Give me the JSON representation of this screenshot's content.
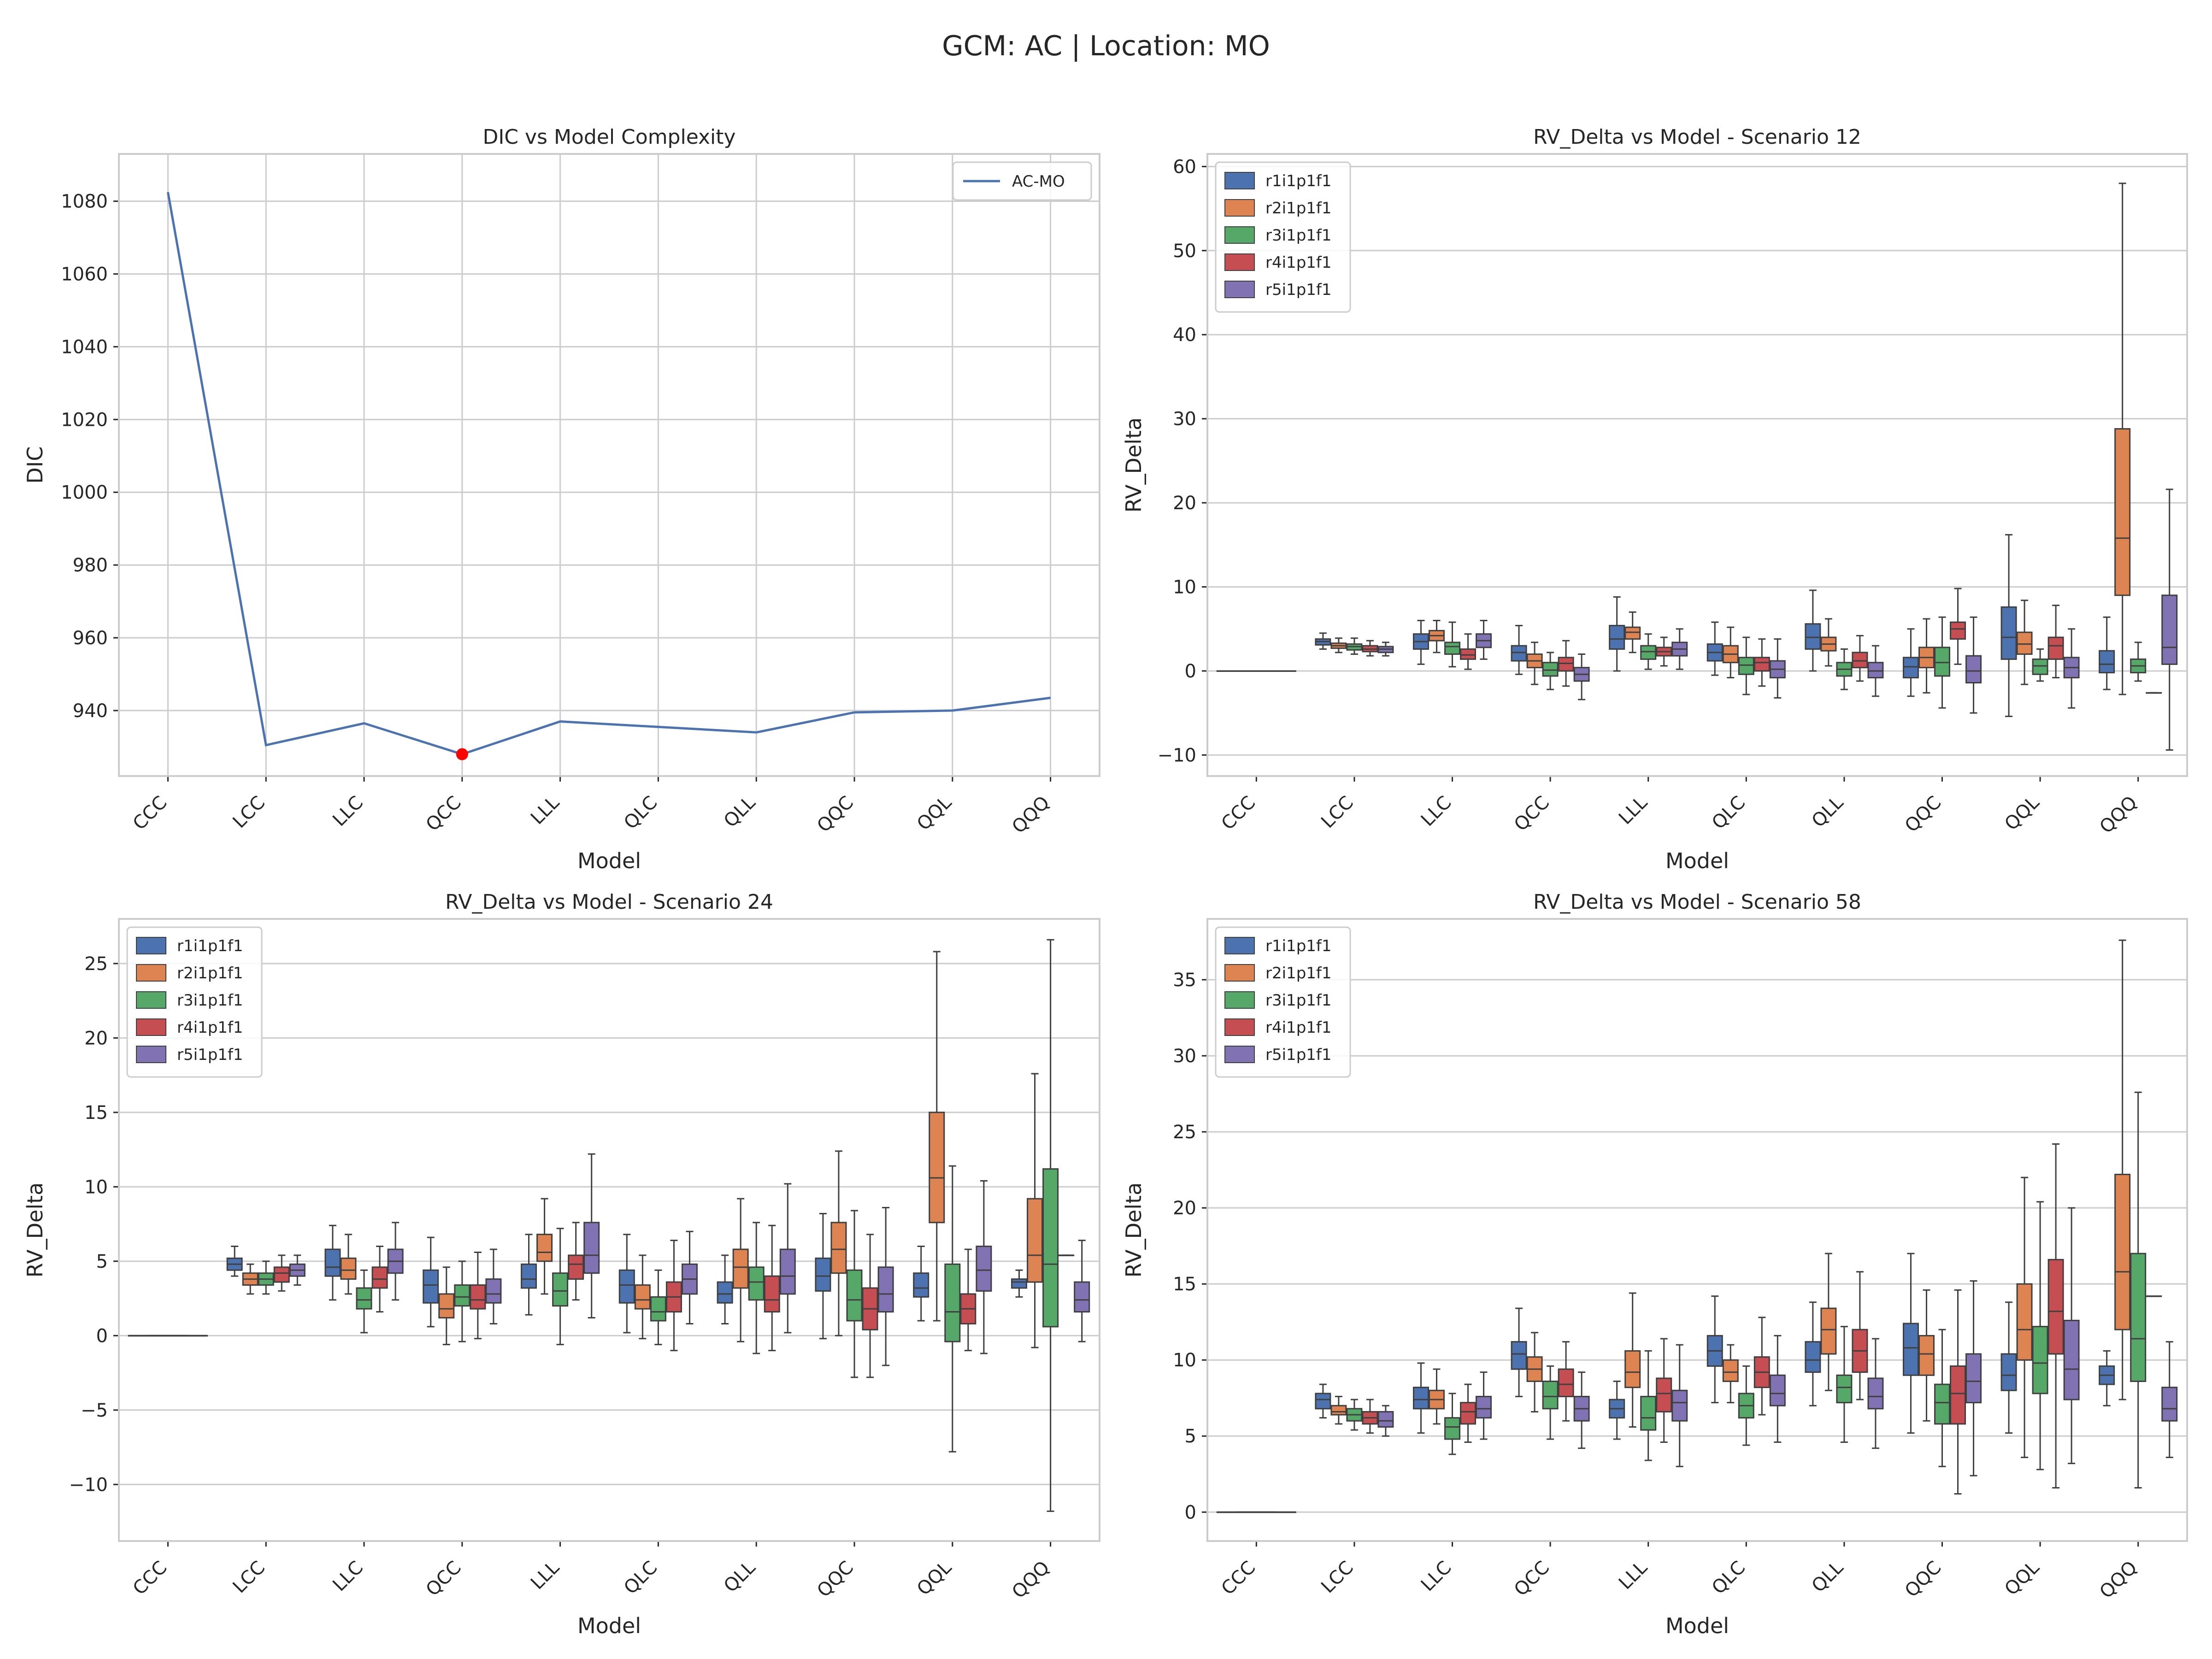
{
  "suptitle": "GCM: AC | Location: MO",
  "palette": [
    "#4c72b0",
    "#dd8452",
    "#55a868",
    "#c44e52",
    "#8172b3"
  ],
  "charts": [
    {
      "type": "line",
      "title": "DIC vs Model Complexity",
      "xlabel": "Model",
      "ylabel": "DIC",
      "categories": [
        "CCC",
        "LCC",
        "LLC",
        "QCC",
        "LLL",
        "QLC",
        "QLL",
        "QQC",
        "QQL",
        "QQQ"
      ],
      "series": [
        {
          "name": "AC-MO",
          "color": "#4c72b0",
          "values": [
            1082.5,
            930.5,
            936.5,
            928.0,
            937.0,
            935.5,
            934.0,
            939.5,
            940.0,
            943.5
          ]
        }
      ],
      "highlight": {
        "category": "QCC",
        "value": 928.0,
        "color": "#ff0000"
      },
      "ylim": [
        922,
        1093
      ],
      "yticks": [
        940,
        960,
        980,
        1000,
        1020,
        1040,
        1060,
        1080
      ],
      "legend": "top-right",
      "grid": true
    },
    {
      "type": "box",
      "title": "RV_Delta vs Model - Scenario 12",
      "xlabel": "Model",
      "ylabel": "RV_Delta",
      "categories": [
        "CCC",
        "LCC",
        "LLC",
        "QCC",
        "LLL",
        "QLC",
        "QLL",
        "QQC",
        "QQL",
        "QQQ"
      ],
      "series_names": [
        "r1i1p1f1",
        "r2i1p1f1",
        "r3i1p1f1",
        "r4i1p1f1",
        "r5i1p1f1"
      ],
      "legend": "top-left",
      "ylim": [
        -12.5,
        61.5
      ],
      "yticks": [
        -10,
        0,
        10,
        20,
        30,
        40,
        50,
        60
      ],
      "grid": true,
      "boxes": [
        [
          [
            0,
            0,
            0,
            0,
            0
          ]
        ],
        [
          [
            2.6,
            3.1,
            3.5,
            3.8,
            4.5
          ],
          [
            2.2,
            2.7,
            3.0,
            3.3,
            3.9
          ],
          [
            2.0,
            2.5,
            2.9,
            3.2,
            3.9
          ],
          [
            1.8,
            2.3,
            2.6,
            3.0,
            3.6
          ],
          [
            1.8,
            2.2,
            2.6,
            2.9,
            3.4
          ]
        ],
        [
          [
            0.8,
            2.6,
            3.5,
            4.4,
            6.0
          ],
          [
            2.2,
            3.6,
            4.2,
            4.8,
            6.0
          ],
          [
            0.5,
            2.0,
            2.9,
            3.4,
            5.8
          ],
          [
            0.2,
            1.4,
            1.9,
            2.6,
            4.4
          ],
          [
            1.4,
            2.8,
            3.6,
            4.4,
            6.0
          ]
        ],
        [
          [
            -0.4,
            1.2,
            2.2,
            3.0,
            5.4
          ],
          [
            -1.6,
            0.4,
            1.2,
            2.0,
            3.4
          ],
          [
            -2.2,
            -0.6,
            0.1,
            1.0,
            2.2
          ],
          [
            -1.8,
            0.0,
            0.9,
            1.6,
            3.6
          ],
          [
            -3.4,
            -1.2,
            -0.4,
            0.4,
            2.0
          ]
        ],
        [
          [
            0.0,
            2.6,
            3.8,
            5.4,
            8.8
          ],
          [
            2.2,
            3.8,
            4.6,
            5.2,
            7.0
          ],
          [
            0.2,
            1.4,
            2.3,
            3.0,
            4.4
          ],
          [
            0.6,
            1.8,
            2.3,
            2.8,
            4.0
          ],
          [
            0.2,
            1.8,
            2.6,
            3.4,
            5.0
          ]
        ],
        [
          [
            -0.5,
            1.2,
            2.2,
            3.2,
            5.8
          ],
          [
            -0.8,
            1.0,
            2.0,
            3.0,
            5.2
          ],
          [
            -2.8,
            -0.4,
            0.7,
            1.6,
            4.0
          ],
          [
            -1.8,
            0.0,
            1.0,
            1.6,
            3.8
          ],
          [
            -3.2,
            -0.8,
            0.2,
            1.2,
            3.8
          ]
        ],
        [
          [
            0.0,
            2.6,
            4.0,
            5.6,
            9.6
          ],
          [
            0.6,
            2.4,
            3.2,
            4.0,
            6.2
          ],
          [
            -2.2,
            -0.6,
            0.2,
            1.0,
            2.6
          ],
          [
            -1.2,
            0.4,
            1.2,
            2.2,
            4.2
          ],
          [
            -3.0,
            -0.8,
            0.0,
            1.0,
            3.0
          ]
        ],
        [
          [
            -3.0,
            -0.8,
            0.5,
            1.6,
            5.0
          ],
          [
            -2.6,
            0.4,
            1.6,
            2.8,
            6.2
          ],
          [
            -4.4,
            -0.6,
            1.0,
            2.8,
            6.4
          ],
          [
            0.8,
            3.8,
            5.0,
            5.8,
            9.8
          ],
          [
            -5.0,
            -1.4,
            0.0,
            1.8,
            6.4
          ]
        ],
        [
          [
            -5.4,
            1.4,
            4.0,
            7.6,
            16.2
          ],
          [
            -1.6,
            2.0,
            3.2,
            4.6,
            8.4
          ],
          [
            -1.2,
            -0.4,
            0.6,
            1.4,
            2.6
          ],
          [
            -0.8,
            1.4,
            3.0,
            4.0,
            7.8
          ],
          [
            -4.4,
            -0.8,
            0.4,
            1.6,
            5.0
          ]
        ],
        [
          [
            -2.2,
            -0.2,
            0.8,
            2.4,
            6.4
          ],
          [
            -2.8,
            9.0,
            15.8,
            28.8,
            58.0
          ],
          [
            -1.2,
            -0.2,
            0.6,
            1.4,
            3.4
          ],
          [
            -2.6,
            -2.6,
            -2.6,
            -2.6,
            -2.6
          ],
          [
            -9.4,
            0.8,
            2.8,
            9.0,
            21.6
          ]
        ]
      ]
    },
    {
      "type": "box",
      "title": "RV_Delta vs Model - Scenario 24",
      "xlabel": "Model",
      "ylabel": "RV_Delta",
      "categories": [
        "CCC",
        "LCC",
        "LLC",
        "QCC",
        "LLL",
        "QLC",
        "QLL",
        "QQC",
        "QQL",
        "QQQ"
      ],
      "series_names": [
        "r1i1p1f1",
        "r2i1p1f1",
        "r3i1p1f1",
        "r4i1p1f1",
        "r5i1p1f1"
      ],
      "legend": "top-left",
      "ylim": [
        -13.8,
        28.0
      ],
      "yticks": [
        -10,
        -5,
        0,
        5,
        10,
        15,
        20,
        25
      ],
      "grid": true,
      "boxes": [
        [
          [
            0,
            0,
            0,
            0,
            0
          ]
        ],
        [
          [
            4.0,
            4.4,
            4.8,
            5.2,
            6.0
          ],
          [
            2.8,
            3.4,
            3.8,
            4.2,
            4.8
          ],
          [
            2.8,
            3.4,
            3.8,
            4.2,
            5.0
          ],
          [
            3.0,
            3.6,
            4.2,
            4.6,
            5.4
          ],
          [
            3.4,
            4.0,
            4.4,
            4.8,
            5.4
          ]
        ],
        [
          [
            2.4,
            4.0,
            4.6,
            5.8,
            7.4
          ],
          [
            2.8,
            3.8,
            4.4,
            5.2,
            6.8
          ],
          [
            0.2,
            1.8,
            2.4,
            3.2,
            4.4
          ],
          [
            1.6,
            3.2,
            3.8,
            4.6,
            6.0
          ],
          [
            2.4,
            4.2,
            5.0,
            5.8,
            7.6
          ]
        ],
        [
          [
            0.6,
            2.2,
            3.4,
            4.4,
            6.6
          ],
          [
            -0.6,
            1.2,
            1.8,
            2.8,
            4.6
          ],
          [
            -0.4,
            2.0,
            2.6,
            3.4,
            5.0
          ],
          [
            -0.2,
            1.8,
            2.4,
            3.4,
            5.6
          ],
          [
            0.8,
            2.2,
            2.8,
            3.8,
            5.8
          ]
        ],
        [
          [
            1.4,
            3.2,
            3.8,
            4.8,
            6.8
          ],
          [
            2.8,
            5.0,
            5.6,
            6.8,
            9.2
          ],
          [
            -0.6,
            2.0,
            3.0,
            4.2,
            7.2
          ],
          [
            2.4,
            3.8,
            4.8,
            5.4,
            7.6
          ],
          [
            1.2,
            4.2,
            5.4,
            7.6,
            12.2
          ]
        ],
        [
          [
            0.2,
            2.2,
            3.4,
            4.4,
            6.8
          ],
          [
            -0.2,
            1.8,
            2.4,
            3.4,
            5.4
          ],
          [
            -0.6,
            1.0,
            1.6,
            2.6,
            4.4
          ],
          [
            -1.0,
            1.6,
            2.6,
            3.6,
            6.4
          ],
          [
            0.8,
            2.8,
            3.8,
            4.8,
            7.0
          ]
        ],
        [
          [
            0.8,
            2.2,
            2.8,
            3.6,
            5.4
          ],
          [
            -0.4,
            3.2,
            4.6,
            5.8,
            9.2
          ],
          [
            -1.2,
            2.4,
            3.6,
            4.6,
            7.6
          ],
          [
            -1.0,
            1.6,
            2.4,
            4.0,
            7.4
          ],
          [
            0.2,
            2.8,
            4.0,
            5.8,
            10.2
          ]
        ],
        [
          [
            -0.2,
            3.0,
            4.0,
            5.2,
            8.2
          ],
          [
            0.0,
            4.2,
            5.8,
            7.6,
            12.4
          ],
          [
            -2.8,
            1.0,
            2.4,
            4.4,
            8.4
          ],
          [
            -2.8,
            0.4,
            1.8,
            3.2,
            6.8
          ],
          [
            -2.0,
            1.6,
            2.8,
            4.6,
            8.6
          ]
        ],
        [
          [
            1.0,
            2.6,
            3.2,
            4.2,
            6.0
          ],
          [
            1.0,
            7.6,
            10.6,
            15.0,
            25.8
          ],
          [
            -7.8,
            -0.4,
            1.6,
            4.8,
            11.4
          ],
          [
            -1.0,
            0.8,
            1.8,
            2.8,
            5.8
          ],
          [
            -1.2,
            3.0,
            4.4,
            6.0,
            10.4
          ]
        ],
        [
          [
            2.6,
            3.2,
            3.6,
            3.8,
            4.4
          ],
          [
            -0.8,
            3.6,
            5.4,
            9.2,
            17.6
          ],
          [
            -11.8,
            0.6,
            4.8,
            11.2,
            26.6
          ],
          [
            5.4,
            5.4,
            5.4,
            5.4,
            5.4
          ],
          [
            -0.4,
            1.6,
            2.4,
            3.6,
            6.4
          ]
        ]
      ]
    },
    {
      "type": "box",
      "title": "RV_Delta vs Model - Scenario 58",
      "xlabel": "Model",
      "ylabel": "RV_Delta",
      "categories": [
        "CCC",
        "LCC",
        "LLC",
        "QCC",
        "LLL",
        "QLC",
        "QLL",
        "QQC",
        "QQL",
        "QQQ"
      ],
      "series_names": [
        "r1i1p1f1",
        "r2i1p1f1",
        "r3i1p1f1",
        "r4i1p1f1",
        "r5i1p1f1"
      ],
      "legend": "top-left",
      "ylim": [
        -1.9,
        39.0
      ],
      "yticks": [
        0,
        5,
        10,
        15,
        20,
        25,
        30,
        35
      ],
      "grid": true,
      "boxes": [
        [
          [
            0,
            0,
            0,
            0,
            0
          ]
        ],
        [
          [
            6.2,
            6.8,
            7.4,
            7.8,
            8.4
          ],
          [
            5.8,
            6.4,
            6.6,
            7.0,
            7.6
          ],
          [
            5.4,
            6.0,
            6.4,
            6.8,
            7.4
          ],
          [
            5.2,
            5.8,
            6.2,
            6.6,
            7.4
          ],
          [
            5.0,
            5.6,
            6.0,
            6.6,
            7.0
          ]
        ],
        [
          [
            5.2,
            6.8,
            7.4,
            8.2,
            9.8
          ],
          [
            5.8,
            6.8,
            7.4,
            8.0,
            9.4
          ],
          [
            3.8,
            4.8,
            5.6,
            6.2,
            7.8
          ],
          [
            4.6,
            5.8,
            6.6,
            7.2,
            8.4
          ],
          [
            4.8,
            6.2,
            6.8,
            7.6,
            9.2
          ]
        ],
        [
          [
            7.6,
            9.4,
            10.4,
            11.2,
            13.4
          ],
          [
            6.6,
            8.6,
            9.4,
            10.2,
            11.8
          ],
          [
            4.8,
            6.8,
            7.6,
            8.6,
            9.6
          ],
          [
            6.0,
            7.6,
            8.4,
            9.4,
            11.2
          ],
          [
            4.2,
            6.0,
            6.8,
            7.6,
            9.2
          ]
        ],
        [
          [
            4.8,
            6.2,
            6.8,
            7.4,
            8.6
          ],
          [
            5.6,
            8.2,
            9.2,
            10.6,
            14.4
          ],
          [
            3.4,
            5.4,
            6.2,
            7.6,
            10.6
          ],
          [
            4.6,
            6.6,
            7.8,
            8.8,
            11.4
          ],
          [
            3.0,
            6.0,
            7.2,
            8.0,
            11.0
          ]
        ],
        [
          [
            7.2,
            9.6,
            10.6,
            11.6,
            14.2
          ],
          [
            7.2,
            8.6,
            9.2,
            10.0,
            11.0
          ],
          [
            4.4,
            6.2,
            7.0,
            7.8,
            9.6
          ],
          [
            6.4,
            8.2,
            9.2,
            10.2,
            12.8
          ],
          [
            4.6,
            7.0,
            7.8,
            9.0,
            11.6
          ]
        ],
        [
          [
            7.0,
            9.2,
            10.0,
            11.2,
            13.8
          ],
          [
            8.0,
            10.4,
            12.0,
            13.4,
            17.0
          ],
          [
            4.6,
            7.2,
            8.2,
            9.0,
            12.2
          ],
          [
            7.4,
            9.2,
            10.6,
            12.0,
            15.8
          ],
          [
            4.2,
            6.8,
            7.6,
            8.8,
            11.4
          ]
        ],
        [
          [
            5.2,
            9.0,
            10.8,
            12.4,
            17.0
          ],
          [
            6.0,
            9.0,
            10.4,
            11.6,
            14.6
          ],
          [
            3.0,
            5.8,
            7.2,
            8.4,
            12.0
          ],
          [
            1.2,
            5.8,
            7.8,
            9.6,
            14.6
          ],
          [
            2.4,
            7.2,
            8.6,
            10.4,
            15.2
          ]
        ],
        [
          [
            5.2,
            8.0,
            9.0,
            10.4,
            13.8
          ],
          [
            3.6,
            10.0,
            12.0,
            15.0,
            22.0
          ],
          [
            2.8,
            7.8,
            9.8,
            12.2,
            20.4
          ],
          [
            1.6,
            10.4,
            13.2,
            16.6,
            24.2
          ],
          [
            3.2,
            7.4,
            9.4,
            12.6,
            20.0
          ]
        ],
        [
          [
            7.0,
            8.4,
            9.0,
            9.6,
            10.6
          ],
          [
            7.4,
            12.0,
            15.8,
            22.2,
            37.6
          ],
          [
            1.6,
            8.6,
            11.4,
            17.0,
            27.6
          ],
          [
            14.2,
            14.2,
            14.2,
            14.2,
            14.2
          ],
          [
            3.6,
            6.0,
            6.8,
            8.2,
            11.2
          ]
        ]
      ]
    }
  ]
}
